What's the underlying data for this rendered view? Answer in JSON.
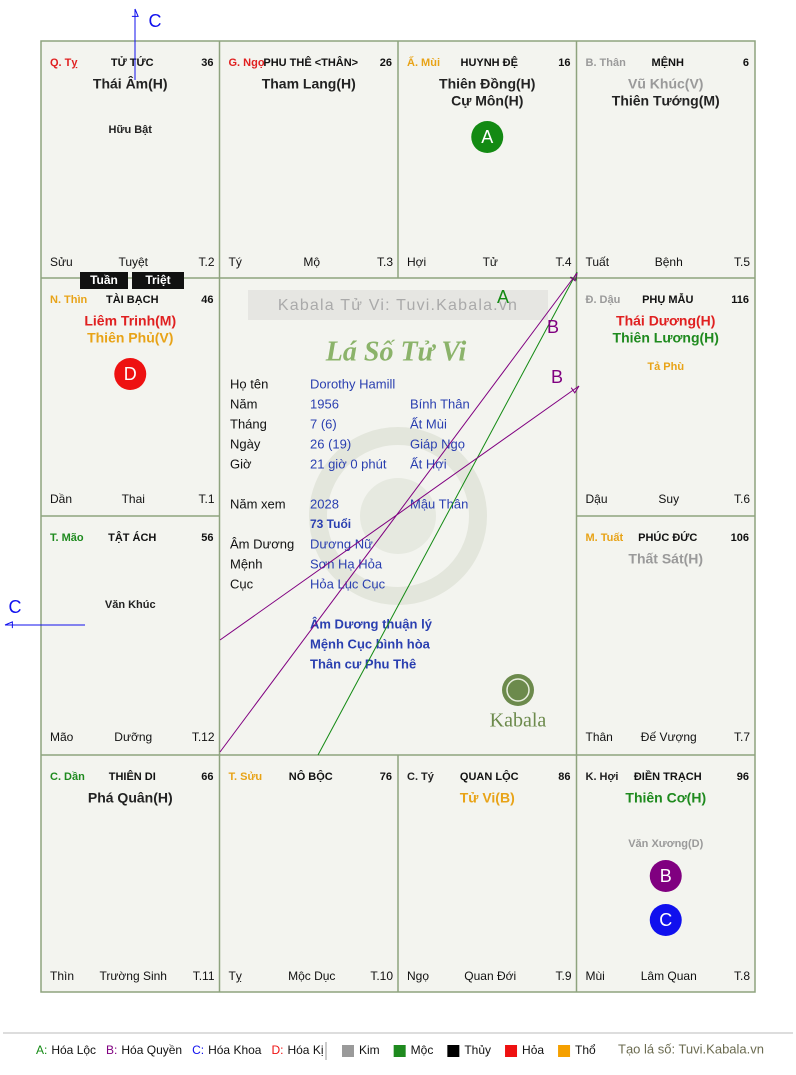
{
  "header_banner": "Kabala Tử Vi: Tuvi.Kabala.vn",
  "title": "Lá Số Tử Vi",
  "palaces": [
    {
      "stem_branch": "Q. Tỵ",
      "stem_color": "#e02020",
      "name": "TỬ TỨC",
      "number": 36,
      "main_stars": [
        {
          "text": "Thái Âm(H)",
          "color": "#222222"
        }
      ],
      "minor_stars": [
        {
          "text": "Hữu Bật",
          "color": "#222222"
        }
      ],
      "bottom": [
        "Sửu",
        "Tuyệt",
        "T.2"
      ],
      "marks": []
    },
    {
      "stem_branch": "G. Ngọ",
      "stem_color": "#e02020",
      "name": "PHU THÊ <THÂN>",
      "number": 26,
      "main_stars": [
        {
          "text": "Tham Lang(H)",
          "color": "#222222"
        }
      ],
      "minor_stars": [],
      "bottom": [
        "Tý",
        "Mộ",
        "T.3"
      ],
      "marks": []
    },
    {
      "stem_branch": "Ấ. Mùi",
      "stem_color": "#e8a317",
      "name": "HUYNH ĐỆ",
      "number": 16,
      "main_stars": [
        {
          "text": "Thiên Đồng(H)",
          "color": "#222222"
        },
        {
          "text": "Cự Môn(H)",
          "color": "#222222"
        }
      ],
      "minor_stars": [],
      "bottom": [
        "Hợi",
        "Tử",
        "T.4"
      ],
      "marks": [
        {
          "letter": "A",
          "color": "#138a13"
        }
      ]
    },
    {
      "stem_branch": "B. Thân",
      "stem_color": "#9a9a9a",
      "name": "MỆNH",
      "number": 6,
      "main_stars": [
        {
          "text": "Vũ Khúc(V)",
          "color": "#9a9a9a"
        },
        {
          "text": "Thiên Tướng(M)",
          "color": "#222222"
        }
      ],
      "minor_stars": [],
      "bottom": [
        "Tuất",
        "Bệnh",
        "T.5"
      ],
      "marks": []
    },
    {
      "stem_branch": "N. Thìn",
      "stem_color": "#e8a317",
      "name": "TÀI BẠCH",
      "number": 46,
      "main_stars": [
        {
          "text": "Liêm Trinh(M)",
          "color": "#e02020"
        },
        {
          "text": "Thiên Phủ(V)",
          "color": "#e8a317"
        }
      ],
      "minor_stars": [],
      "bottom": [
        "Dần",
        "Thai",
        "T.1"
      ],
      "marks": [
        {
          "letter": "D",
          "color": "#ee1111"
        }
      ]
    },
    {
      "stem_branch": "Đ. Dậu",
      "stem_color": "#9a9a9a",
      "name": "PHỤ MẪU",
      "number": 116,
      "main_stars": [
        {
          "text": "Thái Dương(H)",
          "color": "#e02020"
        },
        {
          "text": "Thiên Lương(H)",
          "color": "#1e8a1e"
        }
      ],
      "minor_stars": [
        {
          "text": "Tả Phù",
          "color": "#e8a317"
        }
      ],
      "bottom": [
        "Dậu",
        "Suy",
        "T.6"
      ],
      "marks": []
    },
    {
      "stem_branch": "T. Mão",
      "stem_color": "#1e8a1e",
      "name": "TẬT ÁCH",
      "number": 56,
      "main_stars": [],
      "minor_stars": [
        {
          "text": "Văn Khúc",
          "color": "#222222"
        }
      ],
      "bottom": [
        "Mão",
        "Dưỡng",
        "T.12"
      ],
      "marks": []
    },
    {
      "stem_branch": "M. Tuất",
      "stem_color": "#e8a317",
      "name": "PHÚC ĐỨC",
      "number": 106,
      "main_stars": [
        {
          "text": "Thất Sát(H)",
          "color": "#9a9a9a"
        }
      ],
      "minor_stars": [],
      "bottom": [
        "Thân",
        "Đế Vượng",
        "T.7"
      ],
      "marks": []
    },
    {
      "stem_branch": "C. Dần",
      "stem_color": "#1e8a1e",
      "name": "THIÊN DI",
      "number": 66,
      "main_stars": [
        {
          "text": "Phá Quân(H)",
          "color": "#222222"
        }
      ],
      "minor_stars": [],
      "bottom": [
        "Thìn",
        "Trường Sinh",
        "T.11"
      ],
      "marks": []
    },
    {
      "stem_branch": "T. Sửu",
      "stem_color": "#e8a317",
      "name": "NÔ BỘC",
      "number": 76,
      "main_stars": [],
      "minor_stars": [],
      "bottom": [
        "Tỵ",
        "Mộc Dục",
        "T.10"
      ],
      "marks": []
    },
    {
      "stem_branch": "C. Tý",
      "stem_color": "#222222",
      "name": "QUAN LỘC",
      "number": 86,
      "main_stars": [
        {
          "text": "Tử Vi(B)",
          "color": "#e8a317"
        }
      ],
      "minor_stars": [],
      "bottom": [
        "Ngọ",
        "Quan Đới",
        "T.9"
      ],
      "marks": []
    },
    {
      "stem_branch": "K. Hợi",
      "stem_color": "#222222",
      "name": "ĐIỀN TRẠCH",
      "number": 96,
      "main_stars": [
        {
          "text": "Thiên Cơ(H)",
          "color": "#1e8a1e"
        }
      ],
      "minor_stars": [
        {
          "text": "Văn Xương(D)",
          "color": "#9a9a9a"
        }
      ],
      "bottom": [
        "Mùi",
        "Lâm Quan",
        "T.8"
      ],
      "marks": [
        {
          "letter": "B",
          "color": "#800080"
        },
        {
          "letter": "C",
          "color": "#1010ee"
        }
      ]
    }
  ],
  "tuan_triet": [
    "Tuần",
    "Triệt"
  ],
  "info": [
    [
      "Họ tên",
      "Dorothy Hamill"
    ],
    [
      "Năm",
      "1956",
      "Bính Thân"
    ],
    [
      "Tháng",
      "7  (6)",
      "Ất Mùi"
    ],
    [
      "Ngày",
      "26  (19)",
      "Giáp Ngọ"
    ],
    [
      "Giờ",
      "21 giờ 0 phút",
      "Ất Hợi"
    ],
    [
      "Năm xem",
      "2028",
      "Mậu Thân"
    ]
  ],
  "age": "73 Tuổi",
  "info2": [
    [
      "Âm Dương",
      "Dương Nữ"
    ],
    [
      "Mệnh",
      "Sơn Hạ Hỏa"
    ],
    [
      "Cục",
      "Hỏa Lục Cục"
    ]
  ],
  "notes": [
    "Âm Dương thuận lý",
    "Mệnh Cục bình hòa",
    "Thân cư Phu Thê"
  ],
  "logo": "Kabala",
  "arrows": [
    {
      "label": "A",
      "color": "#138a13"
    },
    {
      "label": "B",
      "color": "#800080"
    },
    {
      "label": "B",
      "color": "#800080"
    },
    {
      "label": "C",
      "color": "#1010ee"
    },
    {
      "label": "C",
      "color": "#1010ee"
    }
  ],
  "legend": {
    "mutagens": [
      {
        "key": "A:",
        "label": "Hóa Lộc",
        "color": "#138a13"
      },
      {
        "key": "B:",
        "label": "Hóa Quyền",
        "color": "#800080"
      },
      {
        "key": "C:",
        "label": "Hóa Khoa",
        "color": "#1010ee"
      },
      {
        "key": "D:",
        "label": "Hóa Kị",
        "color": "#ee1111"
      }
    ],
    "elements": [
      {
        "label": "Kim",
        "color": "#9a9a9a"
      },
      {
        "label": "Mộc",
        "color": "#1e8a1e"
      },
      {
        "label": "Thủy",
        "color": "#000000"
      },
      {
        "label": "Hỏa",
        "color": "#ee1111"
      },
      {
        "label": "Thổ",
        "color": "#f5a000"
      }
    ],
    "credit": "Tạo lá số: Tuvi.Kabala.vn"
  }
}
